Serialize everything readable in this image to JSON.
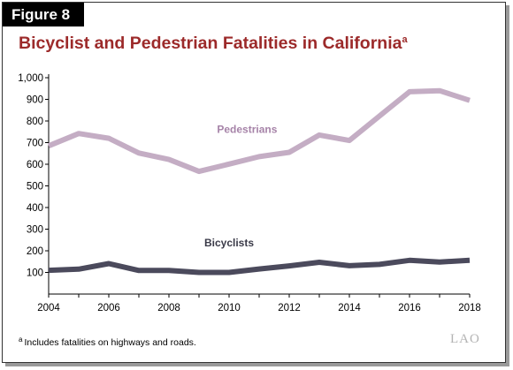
{
  "figure_label": "Figure 8",
  "title": "Bicyclist and Pedestrian Fatalities in California",
  "title_footnote_mark": "a",
  "footnote": {
    "mark": "a",
    "text": "Includes fatalities on highways and roads."
  },
  "logo_text": "LAO",
  "colors": {
    "title": "#9c2a2a",
    "pedestrians": "#c4adc4",
    "bicyclists": "#4b4a5c",
    "pedestrians_label": "#a683a8",
    "bicyclists_label": "#3a3a48",
    "frame_shadow": "#9a9a9a"
  },
  "chart_data": {
    "type": "line",
    "title": "Bicyclist and Pedestrian Fatalities in California",
    "xlabel": "",
    "ylabel": "",
    "x": [
      2004,
      2005,
      2006,
      2007,
      2008,
      2009,
      2010,
      2011,
      2012,
      2013,
      2014,
      2015,
      2016,
      2017,
      2018
    ],
    "xlim": [
      2004,
      2018
    ],
    "ylim": [
      0,
      1000
    ],
    "x_ticks": [
      2004,
      2006,
      2008,
      2010,
      2012,
      2014,
      2016,
      2018
    ],
    "x_tick_labels": [
      "2004",
      "2006",
      "2008",
      "2010",
      "2012",
      "2014",
      "2016",
      "2018"
    ],
    "y_ticks": [
      100,
      200,
      300,
      400,
      500,
      600,
      700,
      800,
      900,
      1000
    ],
    "y_tick_labels": [
      "100",
      "200",
      "300",
      "400",
      "500",
      "600",
      "700",
      "800",
      "900",
      "1,000"
    ],
    "grid": false,
    "legend": "inline labels",
    "series": [
      {
        "name": "Pedestrians",
        "values": [
          685,
          742,
          720,
          652,
          622,
          567,
          601,
          635,
          655,
          735,
          710,
          823,
          935,
          940,
          895
        ]
      },
      {
        "name": "Bicyclists",
        "values": [
          110,
          115,
          141,
          109,
          109,
          100,
          100,
          116,
          130,
          147,
          131,
          137,
          156,
          148,
          156
        ]
      }
    ]
  }
}
